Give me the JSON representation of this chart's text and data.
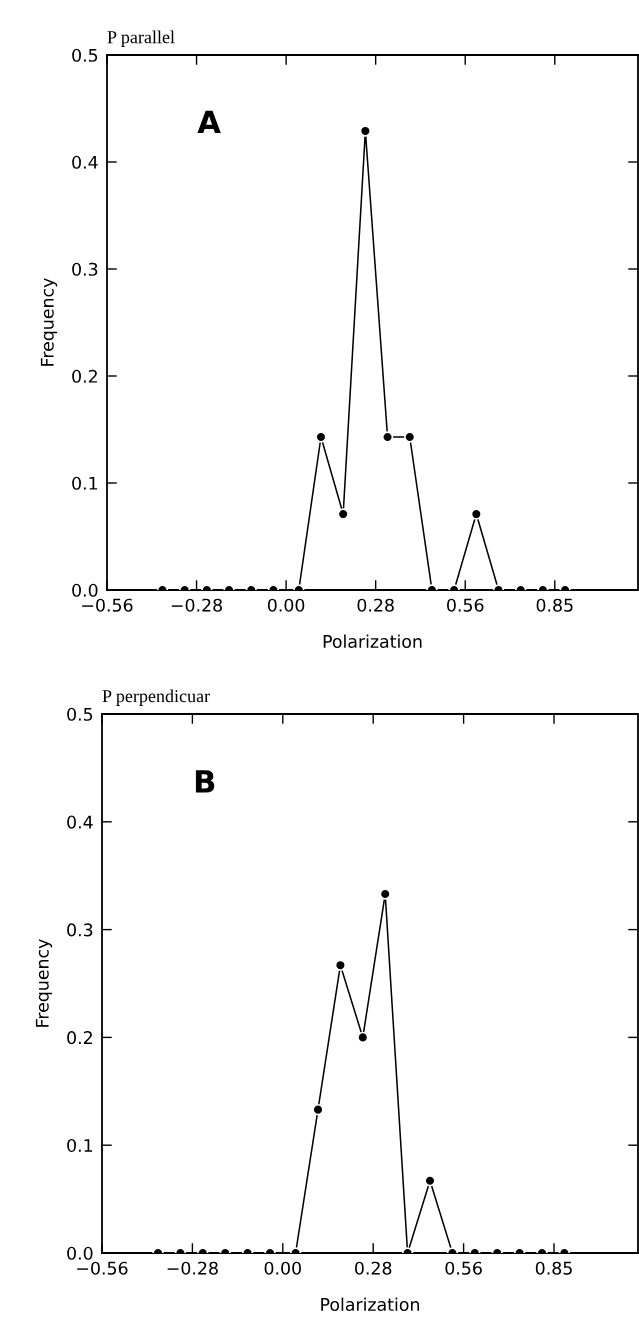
{
  "chart_data": [
    {
      "type": "line",
      "title": "P parallel",
      "xlabel": "Polarization",
      "ylabel": "Frequency",
      "annotations": [
        "A"
      ],
      "x": [
        -0.39,
        -0.32,
        -0.25,
        -0.18,
        -0.11,
        -0.04,
        0.04,
        0.11,
        0.18,
        0.25,
        0.32,
        0.39,
        0.46,
        0.53,
        0.6,
        0.67,
        0.74,
        0.81,
        0.88
      ],
      "values": [
        0,
        0,
        0,
        0,
        0,
        0,
        0,
        0.143,
        0.071,
        0.429,
        0.143,
        0.143,
        0,
        0,
        0.071,
        0,
        0,
        0,
        0
      ],
      "color": "#000000",
      "marker": "circle",
      "line_style": "solid",
      "grid": false,
      "xlim": [
        -0.565,
        1.11
      ],
      "xticks": [
        {
          "value": -0.565,
          "label": "−0.56"
        },
        {
          "value": -0.2825,
          "label": "−0.28"
        },
        {
          "value": 0,
          "label": "0.00"
        },
        {
          "value": 0.2825,
          "label": "0.28"
        },
        {
          "value": 0.565,
          "label": "0.56"
        },
        {
          "value": 0.8475,
          "label": "0.85"
        }
      ],
      "ylim": [
        0,
        0.5
      ],
      "yticks": [
        {
          "value": 0,
          "label": "0.0"
        },
        {
          "value": 0.1,
          "label": "0.1"
        },
        {
          "value": 0.2,
          "label": "0.2"
        },
        {
          "value": 0.3,
          "label": "0.3"
        },
        {
          "value": 0.4,
          "label": "0.4"
        },
        {
          "value": 0.5,
          "label": "0.5"
        }
      ]
    },
    {
      "type": "line",
      "title": "P perpendicuar",
      "xlabel": "Polarization",
      "ylabel": "Frequency",
      "annotations": [
        "B"
      ],
      "x": [
        -0.39,
        -0.32,
        -0.25,
        -0.18,
        -0.11,
        -0.04,
        0.04,
        0.11,
        0.18,
        0.25,
        0.32,
        0.39,
        0.46,
        0.53,
        0.6,
        0.67,
        0.74,
        0.81,
        0.88
      ],
      "values": [
        0,
        0,
        0,
        0,
        0,
        0,
        0,
        0.133,
        0.267,
        0.2,
        0.333,
        0,
        0.067,
        0,
        0,
        0,
        0,
        0,
        0
      ],
      "color": "#000000",
      "marker": "circle",
      "line_style": "solid",
      "grid": false,
      "xlim": [
        -0.565,
        1.11
      ],
      "xticks": [
        {
          "value": -0.565,
          "label": "−0.56"
        },
        {
          "value": -0.2825,
          "label": "−0.28"
        },
        {
          "value": 0,
          "label": "0.00"
        },
        {
          "value": 0.2825,
          "label": "0.28"
        },
        {
          "value": 0.565,
          "label": "0.56"
        },
        {
          "value": 0.8475,
          "label": "0.85"
        }
      ],
      "ylim": [
        0,
        0.5
      ],
      "yticks": [
        {
          "value": 0,
          "label": "0.0"
        },
        {
          "value": 0.1,
          "label": "0.1"
        },
        {
          "value": 0.2,
          "label": "0.2"
        },
        {
          "value": 0.3,
          "label": "0.3"
        },
        {
          "value": 0.4,
          "label": "0.4"
        },
        {
          "value": 0.5,
          "label": "0.5"
        }
      ]
    }
  ]
}
